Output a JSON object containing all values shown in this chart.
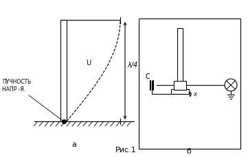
{
  "title": "Рис.1",
  "label_a": "а",
  "label_b": "б",
  "label_u": "U",
  "label_lambda": "λ/4",
  "label_puchnost": "ПУЧНОСТЬ\nНАПР -Я.",
  "label_c": "С",
  "label_x": "x",
  "bg_color": "#ffffff",
  "line_color": "#000000"
}
